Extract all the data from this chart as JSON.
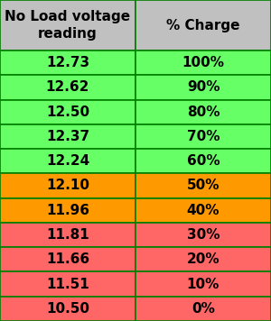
{
  "col1_header": "No Load voltage\nreading",
  "col2_header": "% Charge",
  "rows": [
    {
      "voltage": "12.73",
      "charge": "100%",
      "color": "#66FF66"
    },
    {
      "voltage": "12.62",
      "charge": "90%",
      "color": "#66FF66"
    },
    {
      "voltage": "12.50",
      "charge": "80%",
      "color": "#66FF66"
    },
    {
      "voltage": "12.37",
      "charge": "70%",
      "color": "#66FF66"
    },
    {
      "voltage": "12.24",
      "charge": "60%",
      "color": "#66FF66"
    },
    {
      "voltage": "12.10",
      "charge": "50%",
      "color": "#FF9900"
    },
    {
      "voltage": "11.96",
      "charge": "40%",
      "color": "#FF9900"
    },
    {
      "voltage": "11.81",
      "charge": "30%",
      "color": "#FF6666"
    },
    {
      "voltage": "11.66",
      "charge": "20%",
      "color": "#FF6666"
    },
    {
      "voltage": "11.51",
      "charge": "10%",
      "color": "#FF6666"
    },
    {
      "voltage": "10.50",
      "charge": "0%",
      "color": "#FF6666"
    }
  ],
  "header_color": "#C0C0C0",
  "border_color": "#008000",
  "text_color": "#000000",
  "header_fontsize": 11,
  "cell_fontsize": 11,
  "figsize": [
    3.0,
    3.56
  ],
  "dpi": 100,
  "col_split": 0.5
}
